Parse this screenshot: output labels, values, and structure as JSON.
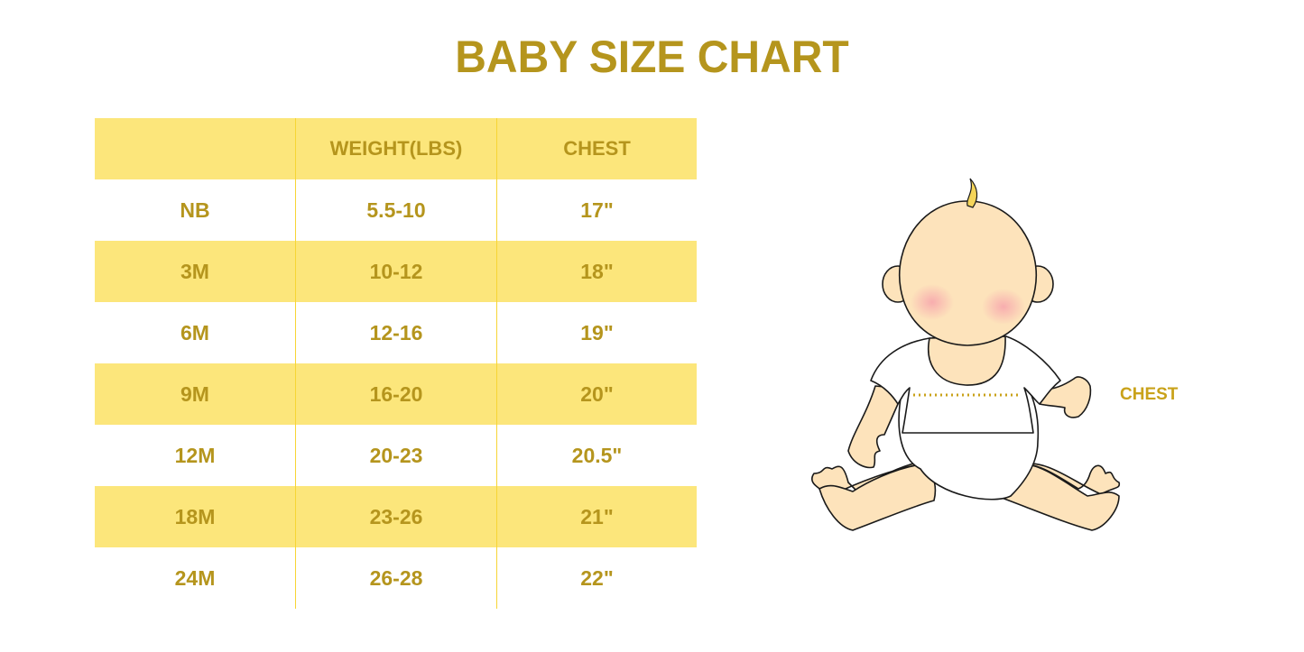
{
  "title": "BABY SIZE CHART",
  "table": {
    "headers": [
      "",
      "WEIGHT(LBS)",
      "CHEST"
    ],
    "rows": [
      [
        "NB",
        "5.5-10",
        "17\""
      ],
      [
        "3M",
        "10-12",
        "18\""
      ],
      [
        "6M",
        "12-16",
        "19\""
      ],
      [
        "9M",
        "16-20",
        "20\""
      ],
      [
        "12M",
        "20-23",
        "20.5\""
      ],
      [
        "18M",
        "23-26",
        "21\""
      ],
      [
        "24M",
        "26-28",
        "22\""
      ]
    ]
  },
  "illustration": {
    "label": "CHEST",
    "icon": "baby-illustration"
  },
  "colors": {
    "text": "#b5951d",
    "band": "#fce67b",
    "divider": "#f7d534",
    "skin": "#fde3bb"
  }
}
